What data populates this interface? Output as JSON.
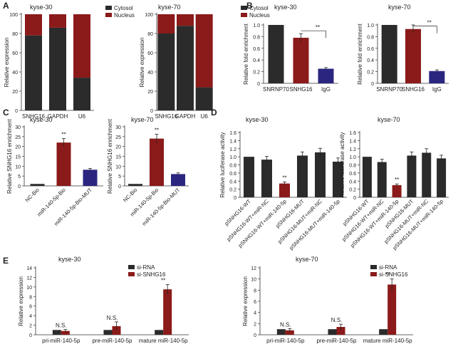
{
  "colors": {
    "dark": "#2b2b2b",
    "red": "#8b1a1a",
    "blue": "#2a2680",
    "axis": "#333333"
  },
  "chart_data": [
    {
      "panel": "A",
      "type": "bar",
      "stacked": true,
      "title": "kyse-30",
      "ylabel": "Relative expression",
      "ylim": [
        0,
        100
      ],
      "yticks": [
        0,
        20,
        40,
        60,
        80,
        100
      ],
      "categories": [
        "SNHG16",
        "GAPDH",
        "U6"
      ],
      "series": [
        {
          "name": "Cytosol",
          "color": "dark",
          "values": [
            78,
            86,
            34
          ]
        },
        {
          "name": "Nucleus",
          "color": "red",
          "values": [
            22,
            14,
            66
          ]
        }
      ],
      "legend": [
        "Cytosol",
        "Nucleus"
      ]
    },
    {
      "panel": "",
      "type": "bar",
      "stacked": true,
      "title": "kyse-70",
      "ylabel": "Relative expression",
      "ylim": [
        0,
        100
      ],
      "yticks": [
        0,
        20,
        40,
        60,
        80,
        100
      ],
      "categories": [
        "SNHG16",
        "GAPDH",
        "U6"
      ],
      "series": [
        {
          "name": "Cytosol",
          "color": "dark",
          "values": [
            80,
            88,
            24
          ]
        },
        {
          "name": "Nucleus",
          "color": "red",
          "values": [
            20,
            12,
            76
          ]
        }
      ],
      "legend": [
        "Cytosol",
        "Nucleus"
      ]
    },
    {
      "panel": "B",
      "type": "bar",
      "title": "kyse-30",
      "ylabel": "Relative fold enrichment",
      "ylim": [
        0,
        1.0
      ],
      "yticks": [
        0,
        0.2,
        0.4,
        0.6,
        0.8,
        1.0
      ],
      "ytick_labels": [
        "0",
        "0.2",
        "0.4",
        "0.6",
        "0.8",
        "1.0"
      ],
      "categories": [
        "SNRNP70",
        "SNHG16",
        "IgG"
      ],
      "values": [
        1.0,
        0.78,
        0.25
      ],
      "errors": [
        0,
        0.07,
        0.02
      ],
      "colors": [
        "dark",
        "red",
        "blue"
      ],
      "annotations": [
        {
          "text": "**",
          "type": "bracket",
          "from": 1,
          "to": 2,
          "y": 0.9
        }
      ]
    },
    {
      "panel": "",
      "type": "bar",
      "title": "kyse-70",
      "ylabel": "Relative fold enrichment",
      "ylim": [
        0,
        1.0
      ],
      "yticks": [
        0,
        0.2,
        0.4,
        0.6,
        0.8,
        1.0
      ],
      "ytick_labels": [
        "0",
        "0.2",
        "0.4",
        "0.6",
        "0.8",
        "1.0"
      ],
      "categories": [
        "SNRNP70",
        "SNHG16",
        "IgG"
      ],
      "values": [
        1.0,
        0.93,
        0.21
      ],
      "errors": [
        0,
        0.07,
        0.02
      ],
      "colors": [
        "dark",
        "red",
        "blue"
      ],
      "annotations": [
        {
          "text": "**",
          "type": "bracket",
          "from": 1,
          "to": 2,
          "y": 0.98
        }
      ]
    },
    {
      "panel": "C",
      "type": "bar",
      "title": "kyse-30",
      "ylabel": "Relative SNHG16 enrichment",
      "ylim": [
        0,
        30
      ],
      "yticks": [
        0,
        5,
        10,
        15,
        20,
        25,
        30
      ],
      "ytick_labels": [
        "0",
        "5",
        "10",
        "15",
        "20",
        "25",
        "30"
      ],
      "categories": [
        "NC-Bio",
        "miR-140-5p-Bio",
        "miR-140-5p-Bio-MUT"
      ],
      "values": [
        1,
        22,
        8.2
      ],
      "errors": [
        0,
        2,
        0.7
      ],
      "colors": [
        "dark",
        "red",
        "blue"
      ],
      "rotate_labels": true,
      "annotations": [
        {
          "text": "**",
          "type": "star",
          "bar": 1
        }
      ]
    },
    {
      "panel": "",
      "type": "bar",
      "title": "kyse-70",
      "ylabel": "Relative SNHG16 enrichment",
      "ylim": [
        0,
        30
      ],
      "yticks": [
        0,
        5,
        10,
        15,
        20,
        25,
        30
      ],
      "ytick_labels": [
        "0",
        "5",
        "10",
        "15",
        "20",
        "25",
        "30"
      ],
      "categories": [
        "NC-Bio",
        "miR-140-5p-Bio",
        "miR-140-5p-Bio-MUT"
      ],
      "values": [
        1,
        24,
        6
      ],
      "errors": [
        0,
        2.2,
        0.6
      ],
      "colors": [
        "dark",
        "red",
        "blue"
      ],
      "rotate_labels": true,
      "annotations": [
        {
          "text": "**",
          "type": "star",
          "bar": 1
        }
      ]
    },
    {
      "panel": "D",
      "type": "bar",
      "title": "kyse-30",
      "ylabel": "Relative luciferase activity",
      "ylim": [
        0,
        1.6
      ],
      "yticks": [
        0,
        0.2,
        0.4,
        0.6,
        0.8,
        1.0,
        1.2,
        1.4,
        1.6
      ],
      "ytick_labels": [
        "0",
        "0.2",
        "0.4",
        "0.6",
        "0.8",
        "1.0",
        "1.2",
        "1.4",
        "1.6"
      ],
      "categories": [
        "pSNHG16-WT",
        "pSNHG16-WT+miR-NC",
        "pSNHG16-WT+miR-140-5p",
        "pSNHG16-MUT",
        "pSNHG16-MUT+miR-NC",
        "pSNHG16-MUT+miR-140-5p"
      ],
      "values": [
        1.0,
        0.93,
        0.34,
        1.03,
        1.11,
        0.88
      ],
      "errors": [
        0,
        0.08,
        0.04,
        0.09,
        0.1,
        0.09
      ],
      "colors": [
        "dark",
        "dark",
        "red",
        "dark",
        "dark",
        "dark"
      ],
      "rotate_labels": true,
      "annotations": [
        {
          "text": "**",
          "type": "star",
          "bar": 2
        }
      ]
    },
    {
      "panel": "",
      "type": "bar",
      "title": "kyse-70",
      "ylabel": "Relative luciferase activity",
      "ylim": [
        0,
        1.6
      ],
      "yticks": [
        0,
        0.2,
        0.4,
        0.6,
        0.8,
        1.0,
        1.2,
        1.4,
        1.6
      ],
      "ytick_labels": [
        "0",
        "0.2",
        "0.4",
        "0.6",
        "0.8",
        "1.0",
        "1.2",
        "1.4",
        "1.6"
      ],
      "categories": [
        "pSNHG16-WT",
        "pSNHG16-WT+miR-NC",
        "pSNHG16-WT+miR-140-5p",
        "pSNHG16-MUT",
        "pSNHG16-MUT+miR-NC",
        "pSNHG16-MUT+miR-140-5p"
      ],
      "values": [
        1.0,
        0.87,
        0.3,
        1.03,
        1.1,
        0.96
      ],
      "errors": [
        0,
        0.07,
        0.03,
        0.09,
        0.1,
        0.08
      ],
      "colors": [
        "dark",
        "dark",
        "red",
        "dark",
        "dark",
        "dark"
      ],
      "rotate_labels": true,
      "annotations": [
        {
          "text": "**",
          "type": "star",
          "bar": 2
        }
      ]
    },
    {
      "panel": "E",
      "type": "bar",
      "grouped": true,
      "title": "kyse-30",
      "ylabel": "Relative expression",
      "ylim": [
        0,
        14
      ],
      "yticks": [
        0,
        2,
        4,
        6,
        8,
        10,
        12,
        14
      ],
      "ytick_labels": [
        "0",
        "2",
        "4",
        "6",
        "8",
        "10",
        "12",
        "14"
      ],
      "categories": [
        "pri-miR-140-5p",
        "pre-miR-140-5p",
        "mature miR-140-5p"
      ],
      "series": [
        {
          "name": "si-RNA",
          "color": "dark",
          "values": [
            1,
            1,
            1
          ],
          "errors": [
            0,
            0,
            0
          ]
        },
        {
          "name": "si-SNHG16",
          "color": "red",
          "values": [
            0.8,
            1.8,
            9.5
          ],
          "errors": [
            0.3,
            0.9,
            1.0
          ]
        }
      ],
      "legend": [
        "si-RNA",
        "si-SNHG16"
      ],
      "group_annotations": [
        "N.S.",
        "N.S.",
        "**"
      ]
    },
    {
      "panel": "",
      "type": "bar",
      "grouped": true,
      "title": "kyse-70",
      "ylabel": "Relative expression",
      "ylim": [
        0,
        12
      ],
      "yticks": [
        0,
        2,
        4,
        6,
        8,
        10,
        12
      ],
      "ytick_labels": [
        "0",
        "2",
        "4",
        "6",
        "8",
        "10",
        "12"
      ],
      "categories": [
        "pri-miR-140-5p",
        "pre-miR-140-5p",
        "mature miR-140-5p"
      ],
      "series": [
        {
          "name": "si-RNA",
          "color": "dark",
          "values": [
            1,
            1,
            1
          ],
          "errors": [
            0,
            0,
            0
          ]
        },
        {
          "name": "si-SNHG16",
          "color": "red",
          "values": [
            0.8,
            1.4,
            9.0
          ],
          "errors": [
            0.3,
            0.5,
            1.0
          ]
        }
      ],
      "legend": [
        "si-RNA",
        "si-SNHG16"
      ],
      "group_annotations": [
        "N.S.",
        "N.S.",
        "**"
      ]
    }
  ]
}
